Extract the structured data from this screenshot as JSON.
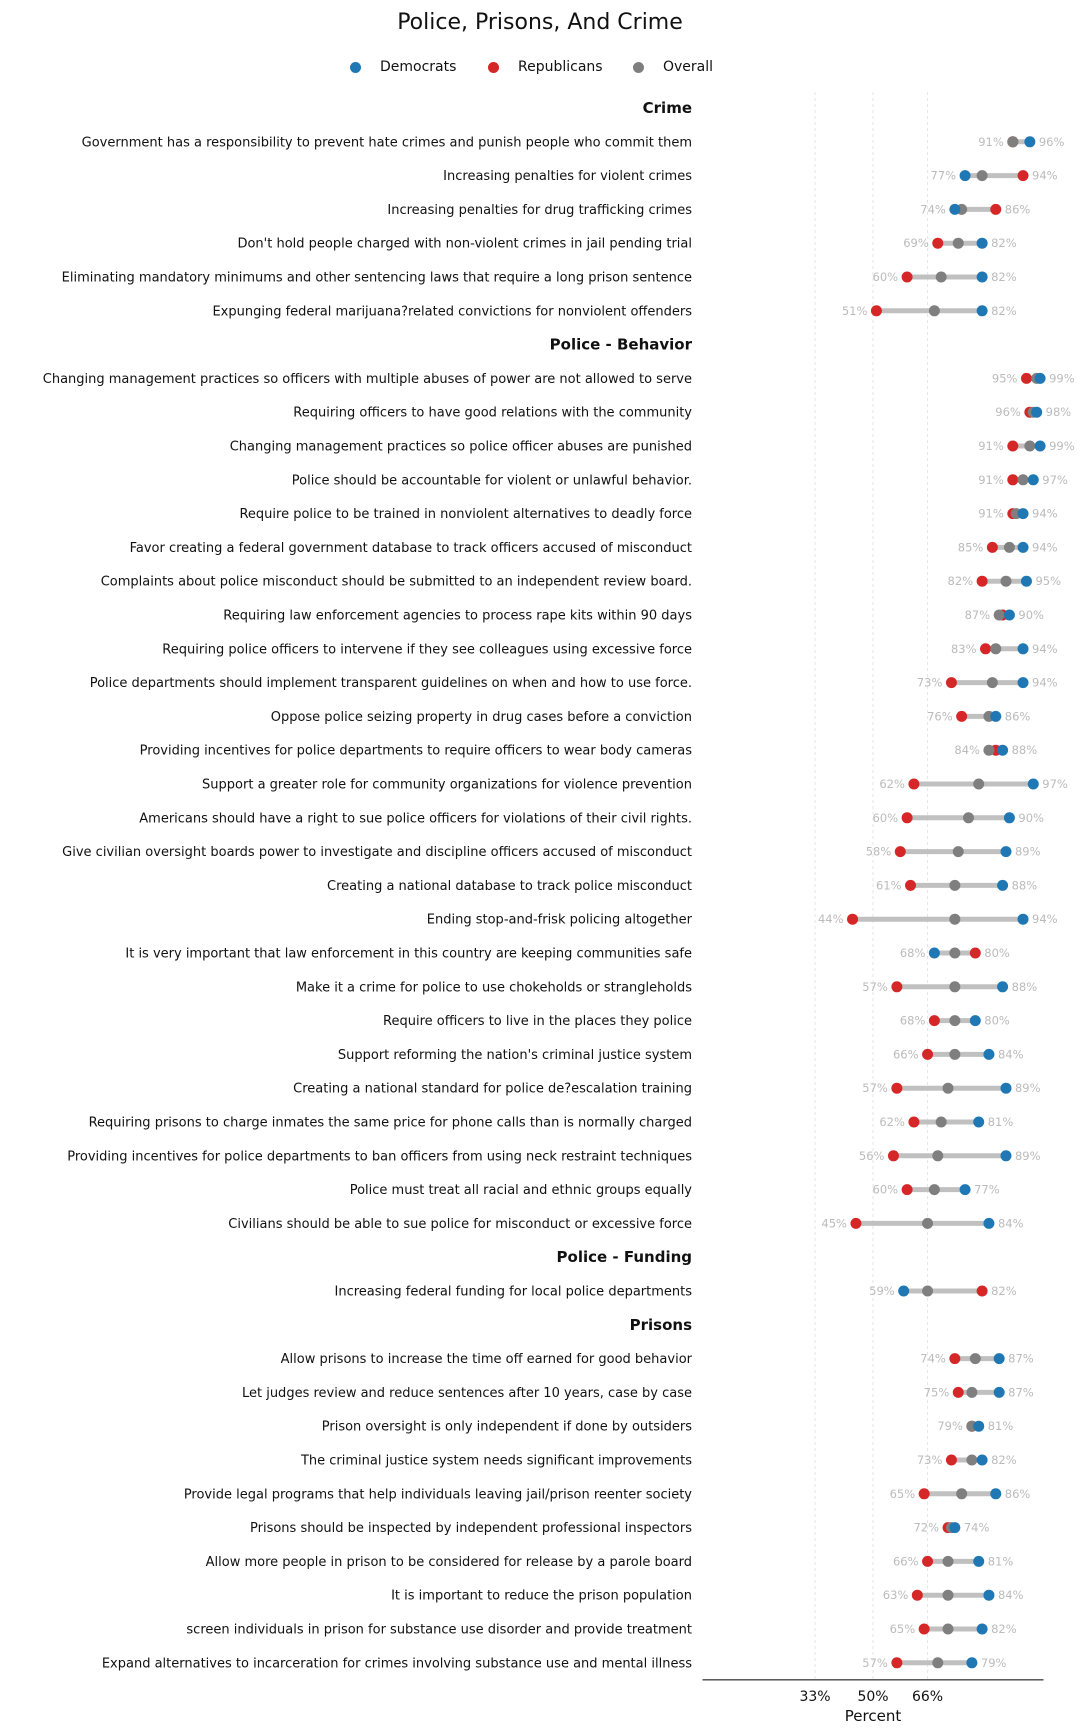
{
  "chart_data": {
    "type": "dumbbell",
    "title": "Police, Prisons, And Crime",
    "xlabel": "Percent",
    "ylabel": "",
    "xlim": [
      0,
      100
    ],
    "xticks": [
      33,
      50,
      66
    ],
    "xtick_labels": [
      "33%",
      "50%",
      "66%"
    ],
    "grid": "vertical dashed at ticks",
    "legend_position": "top-center",
    "legend": [
      {
        "key": "dem",
        "label": "Democrats",
        "color": "#1f77b4"
      },
      {
        "key": "rep",
        "label": "Republicans",
        "color": "#d62728"
      },
      {
        "key": "overall",
        "label": "Overall",
        "color": "#7f7f7f"
      }
    ],
    "range_bar_color": "#c0c0c0",
    "sections": [
      {
        "name": "Crime",
        "items": [
          {
            "label": "Government has a responsibility to prevent hate crimes and punish people who commit them",
            "dem": 96,
            "rep": 91,
            "overall": 91
          },
          {
            "label": "Increasing penalties for violent crimes",
            "dem": 77,
            "rep": 94,
            "overall": 82
          },
          {
            "label": "Increasing penalties for drug trafficking crimes",
            "dem": 74,
            "rep": 86,
            "overall": 76
          },
          {
            "label": "Don't hold people charged with non-violent crimes in jail pending trial",
            "dem": 82,
            "rep": 69,
            "overall": 75
          },
          {
            "label": "Eliminating mandatory minimums and other sentencing laws that require a long prison sentence",
            "dem": 82,
            "rep": 60,
            "overall": 70
          },
          {
            "label": "Expunging federal marijuana?related convictions for nonviolent offenders",
            "dem": 82,
            "rep": 51,
            "overall": 68
          }
        ]
      },
      {
        "name": "Police - Behavior",
        "items": [
          {
            "label": "Changing management practices so officers with multiple abuses of power are not allowed to serve",
            "dem": 99,
            "rep": 95,
            "overall": 98
          },
          {
            "label": "Requiring officers to have good relations with the community",
            "dem": 98,
            "rep": 96,
            "overall": 97
          },
          {
            "label": "Changing management practices so police officer abuses are punished",
            "dem": 99,
            "rep": 91,
            "overall": 96
          },
          {
            "label": "Police should be accountable for violent or unlawful behavior.",
            "dem": 97,
            "rep": 91,
            "overall": 94
          },
          {
            "label": "Require police to be trained in nonviolent alternatives to deadly force",
            "dem": 94,
            "rep": 91,
            "overall": 92
          },
          {
            "label": "Favor creating a federal government database to track officers accused of misconduct",
            "dem": 94,
            "rep": 85,
            "overall": 90
          },
          {
            "label": "Complaints about police misconduct should be submitted to an independent review board.",
            "dem": 95,
            "rep": 82,
            "overall": 89
          },
          {
            "label": "Requiring law enforcement agencies to process rape kits within 90 days",
            "dem": 90,
            "rep": 88,
            "overall": 87
          },
          {
            "label": "Requiring police officers to intervene if they see colleagues using excessive force",
            "dem": 94,
            "rep": 83,
            "overall": 86
          },
          {
            "label": "Police departments should implement transparent guidelines on when and how to use force.",
            "dem": 94,
            "rep": 73,
            "overall": 85
          },
          {
            "label": "Oppose police seizing property in drug cases before a conviction",
            "dem": 86,
            "rep": 76,
            "overall": 84
          },
          {
            "label": "Providing incentives for police departments to require officers to wear body cameras",
            "dem": 88,
            "rep": 86,
            "overall": 84
          },
          {
            "label": "Support a greater role for community organizations for violence prevention",
            "dem": 97,
            "rep": 62,
            "overall": 81
          },
          {
            "label": "Americans should have a right to sue police officers for violations of their civil rights.",
            "dem": 90,
            "rep": 60,
            "overall": 78
          },
          {
            "label": "Give civilian oversight boards power to investigate and discipline officers accused of misconduct",
            "dem": 89,
            "rep": 58,
            "overall": 75
          },
          {
            "label": "Creating a national database to track police misconduct",
            "dem": 88,
            "rep": 61,
            "overall": 74
          },
          {
            "label": "Ending stop-and-frisk policing altogether",
            "dem": 94,
            "rep": 44,
            "overall": 74
          },
          {
            "label": "It is very important that law enforcement in this country are keeping communities safe",
            "dem": 68,
            "rep": 80,
            "overall": 74
          },
          {
            "label": "Make it a crime for police to use chokeholds or strangleholds",
            "dem": 88,
            "rep": 57,
            "overall": 74
          },
          {
            "label": "Require officers to live in the places they police",
            "dem": 80,
            "rep": 68,
            "overall": 74
          },
          {
            "label": "Support reforming the nation's criminal justice system",
            "dem": 84,
            "rep": 66,
            "overall": 74
          },
          {
            "label": "Creating a national standard for police de?escalation training",
            "dem": 89,
            "rep": 57,
            "overall": 72
          },
          {
            "label": "Requiring prisons to charge inmates the same price for phone calls than is normally charged",
            "dem": 81,
            "rep": 62,
            "overall": 70
          },
          {
            "label": "Providing incentives for police departments to ban officers from using neck restraint techniques",
            "dem": 89,
            "rep": 56,
            "overall": 69
          },
          {
            "label": "Police must treat all racial and ethnic groups equally",
            "dem": 77,
            "rep": 60,
            "overall": 68
          },
          {
            "label": "Civilians should be able to sue police for misconduct or excessive force",
            "dem": 84,
            "rep": 45,
            "overall": 66
          }
        ]
      },
      {
        "name": "Police - Funding",
        "items": [
          {
            "label": "Increasing federal funding for local police departments",
            "dem": 59,
            "rep": 82,
            "overall": 66
          }
        ]
      },
      {
        "name": "Prisons",
        "items": [
          {
            "label": "Allow prisons to increase the time off earned for good behavior",
            "dem": 87,
            "rep": 74,
            "overall": 80
          },
          {
            "label": "Let judges review and reduce sentences after 10 years, case by case",
            "dem": 87,
            "rep": 75,
            "overall": 79
          },
          {
            "label": "Prison oversight is only independent if done by outsiders",
            "dem": 81,
            "rep": 79,
            "overall": 79
          },
          {
            "label": "The criminal justice system needs significant improvements",
            "dem": 82,
            "rep": 73,
            "overall": 79
          },
          {
            "label": "Provide legal programs that help individuals leaving jail/prison reenter society",
            "dem": 86,
            "rep": 65,
            "overall": 76
          },
          {
            "label": "Prisons should be inspected by independent professional inspectors",
            "dem": 74,
            "rep": 72,
            "overall": 73
          },
          {
            "label": "Allow more people in prison to be considered for release by a parole board",
            "dem": 81,
            "rep": 66,
            "overall": 72
          },
          {
            "label": "It is important to reduce the prison population",
            "dem": 84,
            "rep": 63,
            "overall": 72
          },
          {
            "label": "screen individuals in prison for substance use disorder and provide treatment",
            "dem": 82,
            "rep": 65,
            "overall": 72
          },
          {
            "label": "Expand alternatives to incarceration for crimes involving substance use and mental illness",
            "dem": 79,
            "rep": 57,
            "overall": 69
          }
        ]
      }
    ]
  }
}
